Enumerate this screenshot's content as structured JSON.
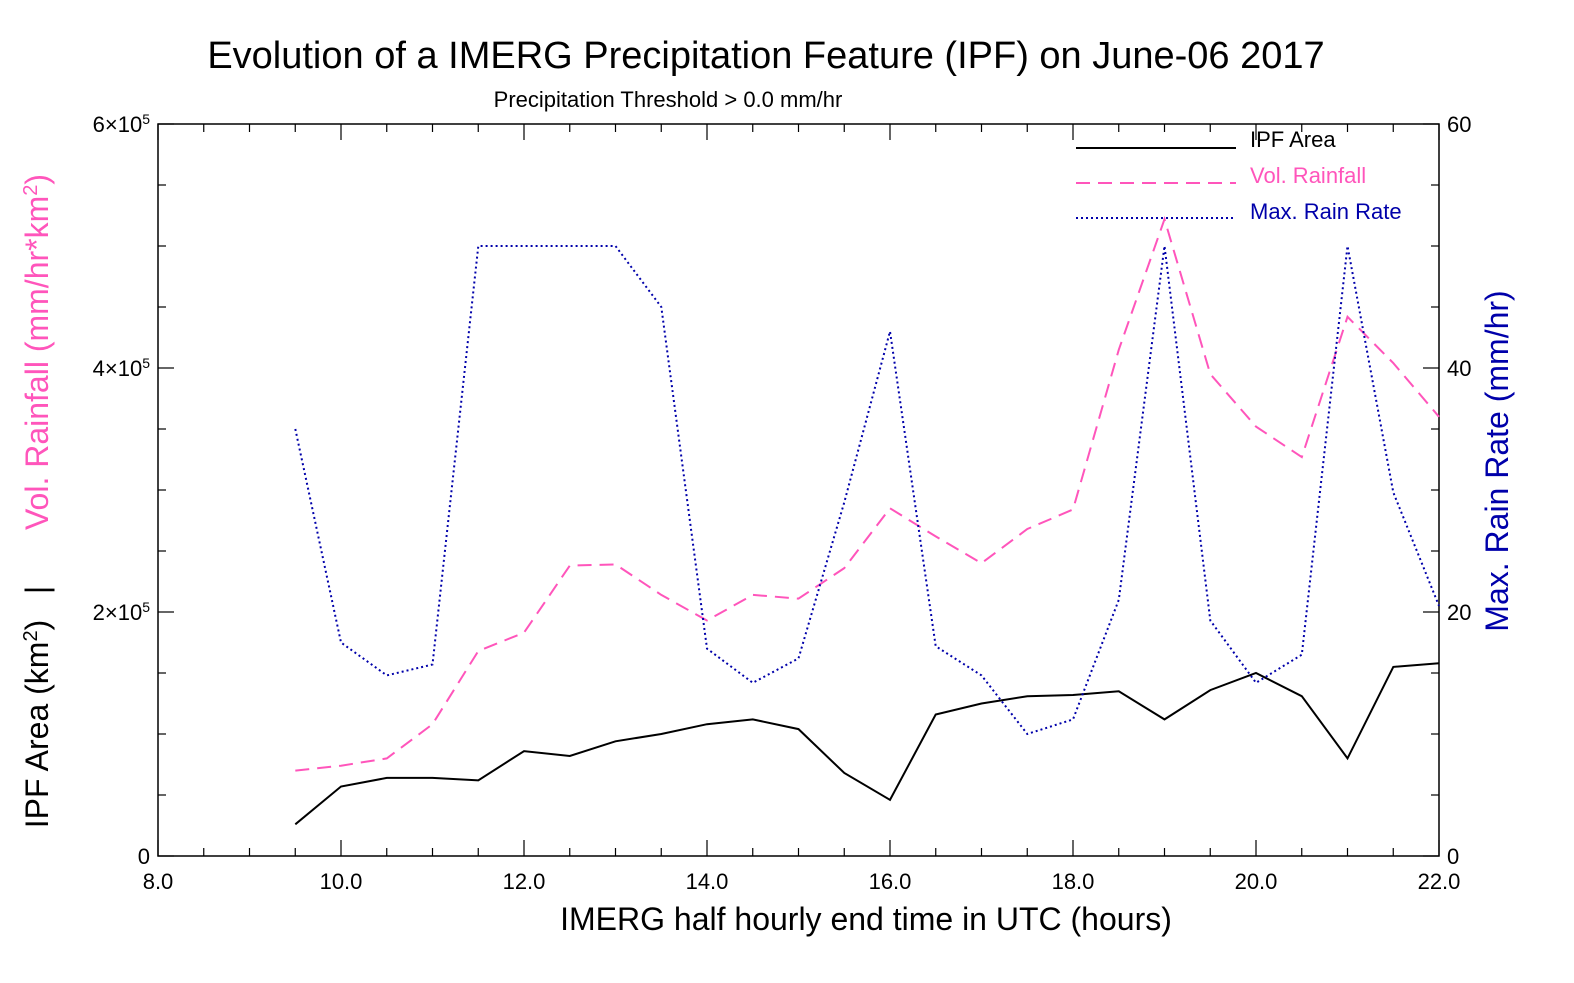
{
  "chart_data": {
    "type": "line",
    "title": "Evolution of a IMERG Precipitation Feature (IPF) on June-06 2017",
    "subtitle": "Precipitation Threshold > 0.0 mm/hr",
    "xlabel": "IMERG half hourly end time in UTC (hours)",
    "ylabel_left_a": "IPF Area (km",
    "ylabel_left_a_sup": "2",
    "ylabel_left_a_close": ")",
    "ylabel_left_sep": "|",
    "ylabel_left_b": "Vol. Rainfall (mm/hr*km",
    "ylabel_left_b_sup": "2",
    "ylabel_left_b_close": ")",
    "ylabel_right": "Max. Rain Rate (mm/hr)",
    "xlim": [
      8.0,
      22.0
    ],
    "ylim_left": [
      0,
      600000
    ],
    "ylim_right": [
      0,
      60
    ],
    "x_ticks": [
      "8.0",
      "10.0",
      "12.0",
      "14.0",
      "16.0",
      "18.0",
      "20.0",
      "22.0"
    ],
    "y_left_ticks": [
      {
        "value": 0,
        "base": "0",
        "exp": ""
      },
      {
        "value": 200000,
        "base": "2×10",
        "exp": "5"
      },
      {
        "value": 400000,
        "base": "4×10",
        "exp": "5"
      },
      {
        "value": 600000,
        "base": "6×10",
        "exp": "5"
      }
    ],
    "y_right_ticks": [
      "0",
      "20",
      "40",
      "60"
    ],
    "legend_position": "top-right",
    "x": [
      9.5,
      10.0,
      10.5,
      11.0,
      11.5,
      12.0,
      12.5,
      13.0,
      13.5,
      14.0,
      14.5,
      15.0,
      15.5,
      16.0,
      16.5,
      17.0,
      17.5,
      18.0,
      18.5,
      19.0,
      19.5,
      20.0,
      20.5,
      21.0,
      21.5,
      22.0
    ],
    "series": [
      {
        "name": "IPF Area",
        "axis": "left",
        "color": "#000000",
        "style": "solid",
        "values": [
          26000,
          57000,
          64000,
          64000,
          62000,
          86000,
          82000,
          94000,
          100000,
          108000,
          112000,
          104000,
          68000,
          46000,
          116000,
          125000,
          131000,
          132000,
          135000,
          112000,
          136000,
          150000,
          131000,
          80000,
          155000,
          158000
        ]
      },
      {
        "name": "Vol. Rainfall",
        "axis": "left",
        "color": "#ff55bb",
        "style": "dashed",
        "values": [
          70000,
          74000,
          80000,
          108000,
          168000,
          183000,
          238000,
          239000,
          214000,
          193000,
          214000,
          211000,
          236000,
          285000,
          262000,
          240000,
          268000,
          284000,
          415000,
          522000,
          395000,
          352000,
          327000,
          442000,
          404000,
          360000
        ]
      },
      {
        "name": "Max. Rain Rate",
        "axis": "right",
        "color": "#0000aa",
        "style": "dotted",
        "values": [
          35.0,
          17.5,
          14.8,
          15.7,
          50.0,
          50.0,
          50.0,
          50.0,
          45.0,
          17.0,
          14.2,
          16.2,
          29.0,
          43.0,
          17.2,
          14.8,
          10.0,
          11.2,
          21.0,
          50.0,
          19.3,
          14.2,
          16.5,
          50.0,
          29.8,
          20.5
        ]
      }
    ]
  },
  "colors": {
    "area": "#000000",
    "rainfall": "#ff55bb",
    "rate": "#0000aa"
  }
}
